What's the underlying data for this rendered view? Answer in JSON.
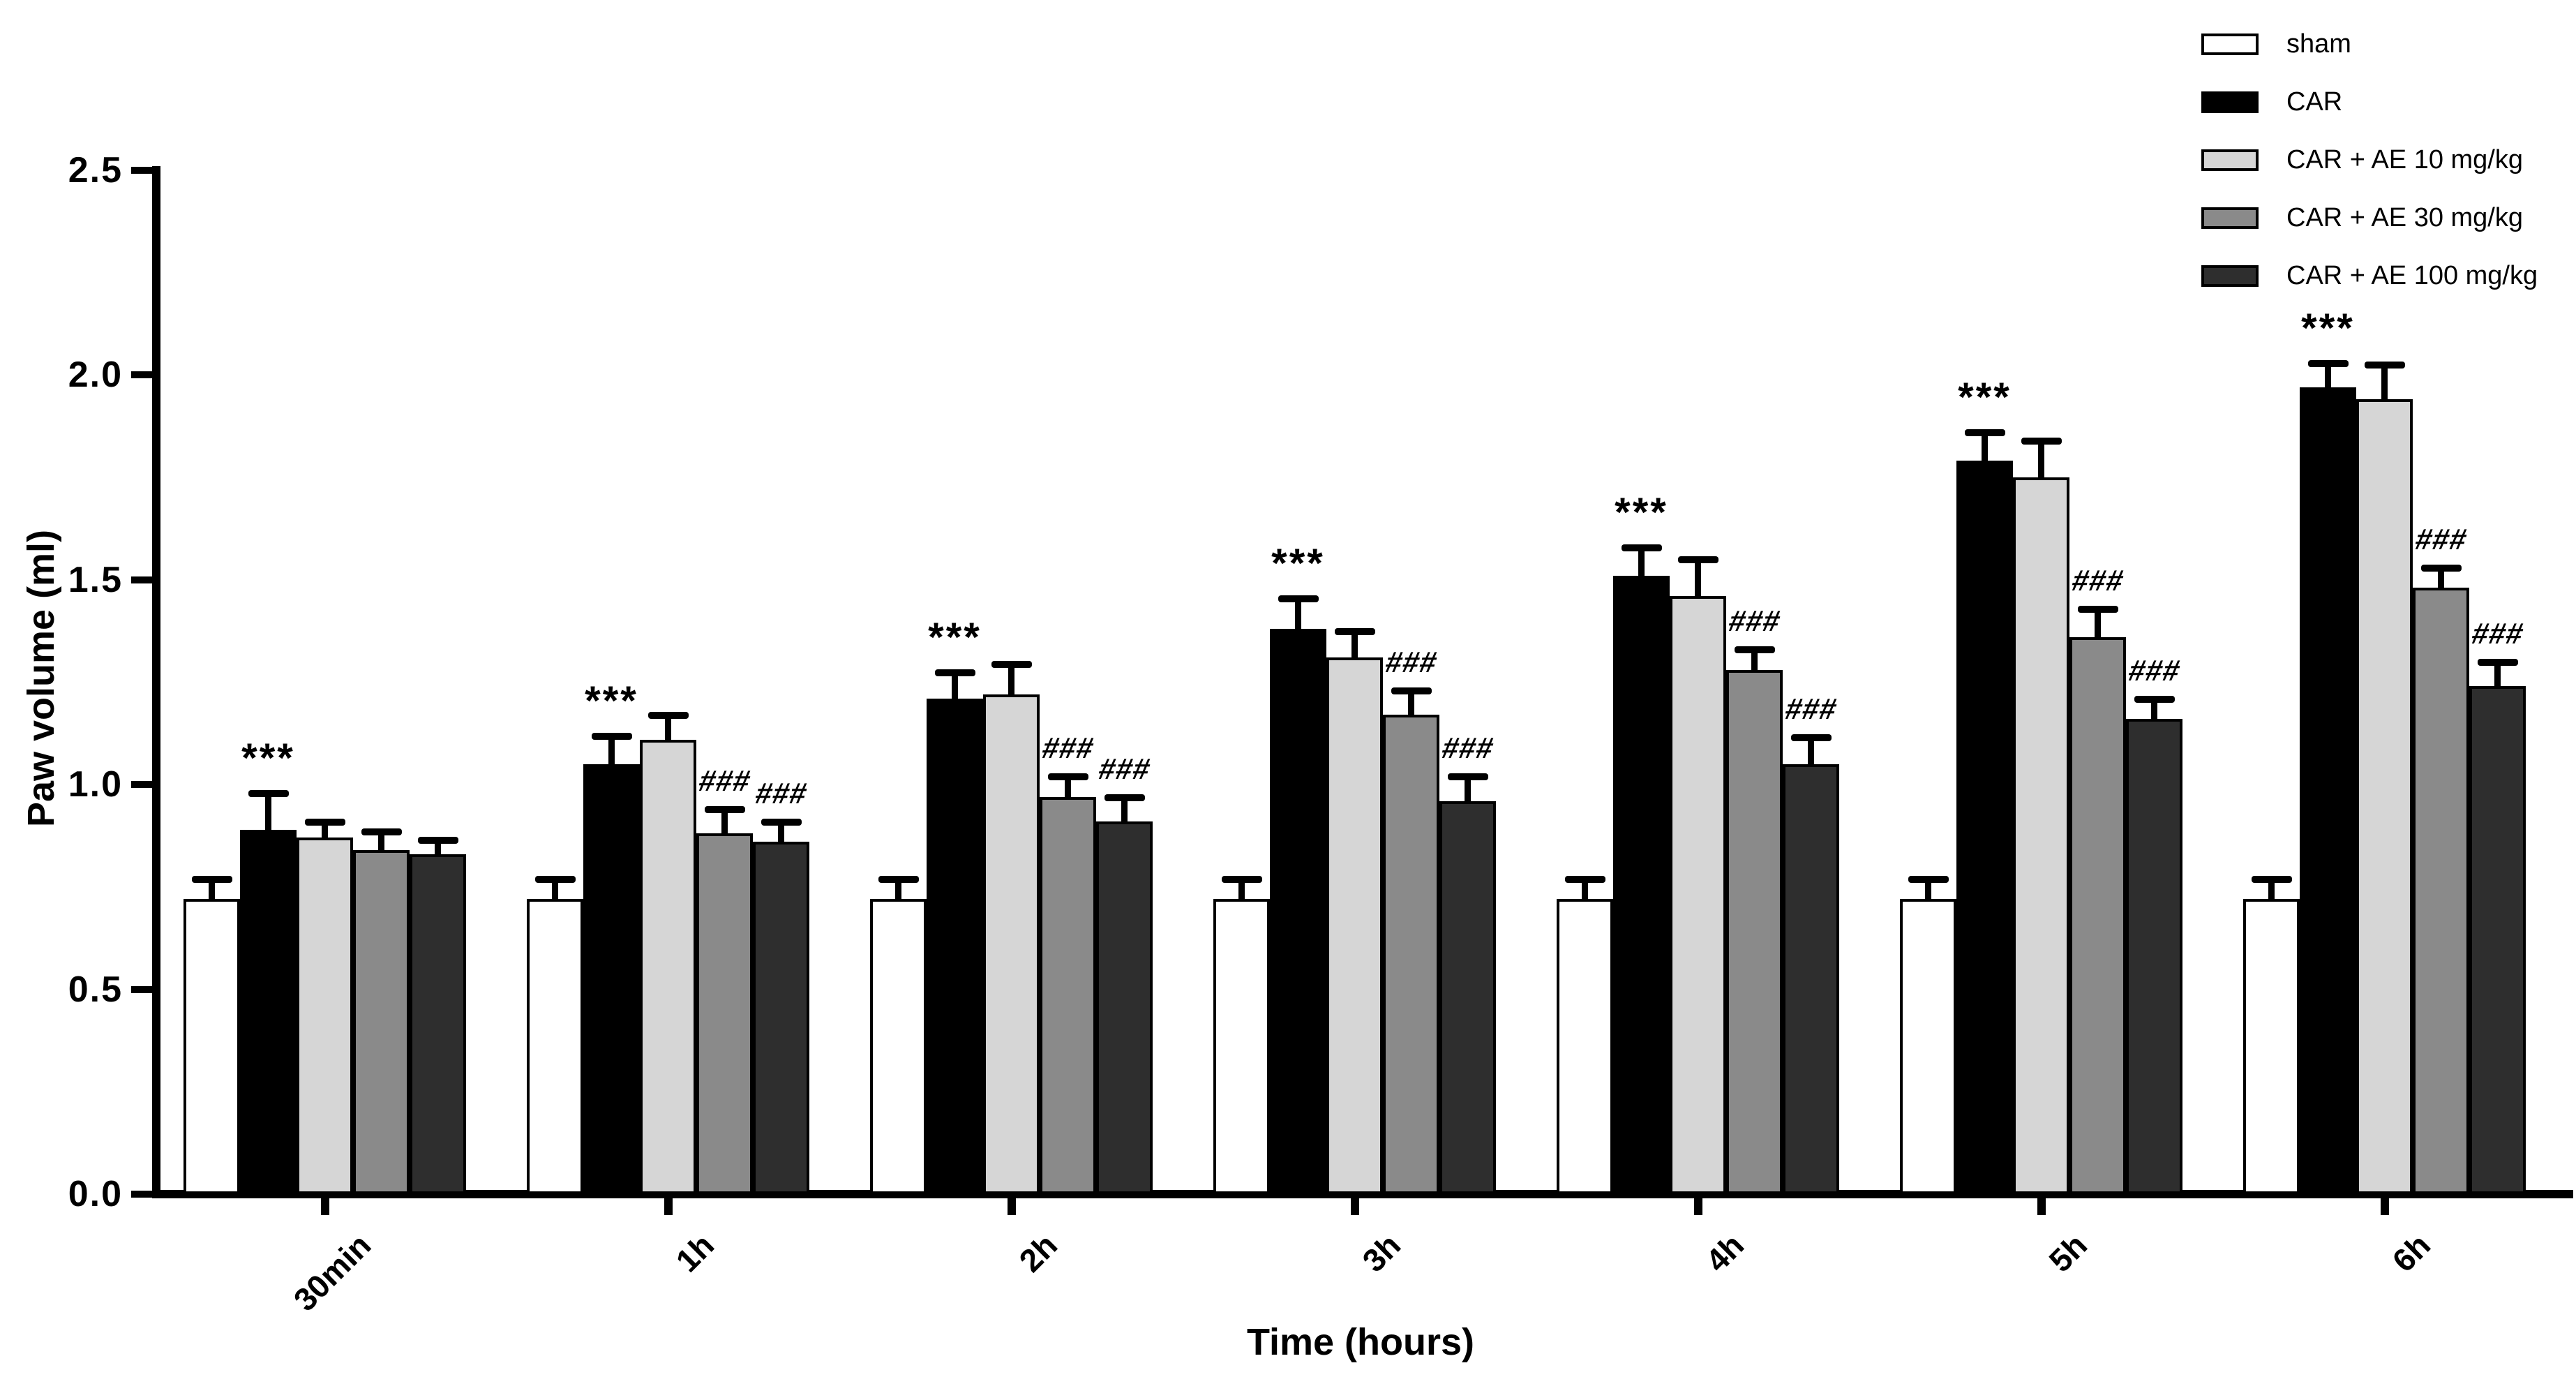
{
  "figure": {
    "y_axis_title": "Paw volume (ml)",
    "x_axis_title": "Time (hours)",
    "y_ticks": [
      "0.0",
      "0.5",
      "1.0",
      "1.5",
      "2.0",
      "2.5"
    ],
    "background_color": "#ffffff",
    "axis_color": "#000000"
  },
  "chart_data": {
    "type": "bar",
    "title": "",
    "xlabel": "Time (hours)",
    "ylabel": "Paw volume (ml)",
    "ylim": [
      0,
      2.5
    ],
    "y_tick_step": 0.5,
    "grid": false,
    "legend_position": "top-right",
    "error_bars": "upper SEM, T-cap",
    "categories": [
      "30min",
      "1h",
      "2h",
      "3h",
      "4h",
      "5h",
      "6h"
    ],
    "series": [
      {
        "name": "sham",
        "color": "#ffffff",
        "values": [
          0.71,
          0.71,
          0.71,
          0.71,
          0.71,
          0.71,
          0.71
        ],
        "errors": [
          0.04,
          0.04,
          0.04,
          0.04,
          0.04,
          0.04,
          0.04
        ],
        "annotations": [
          "",
          "",
          "",
          "",
          "",
          "",
          ""
        ]
      },
      {
        "name": "CAR",
        "color": "#000000",
        "values": [
          0.88,
          1.04,
          1.2,
          1.37,
          1.5,
          1.78,
          1.96
        ],
        "errors": [
          0.08,
          0.06,
          0.055,
          0.065,
          0.06,
          0.06,
          0.05
        ],
        "annotations": [
          "***",
          "***",
          "***",
          "***",
          "***",
          "***",
          "***"
        ]
      },
      {
        "name": "CAR + AE 10 mg/kg",
        "color": "#d6d6d6",
        "values": [
          0.86,
          1.1,
          1.21,
          1.3,
          1.45,
          1.74,
          1.93
        ],
        "errors": [
          0.03,
          0.05,
          0.065,
          0.055,
          0.08,
          0.08,
          0.075
        ],
        "annotations": [
          "",
          "",
          "",
          "",
          "",
          "",
          ""
        ]
      },
      {
        "name": "CAR + AE 30 mg/kg",
        "color": "#8a8a8a",
        "values": [
          0.83,
          0.87,
          0.96,
          1.16,
          1.27,
          1.35,
          1.47
        ],
        "errors": [
          0.035,
          0.05,
          0.04,
          0.05,
          0.04,
          0.06,
          0.04
        ],
        "annotations": [
          "",
          "###",
          "###",
          "###",
          "###",
          "###",
          "###"
        ]
      },
      {
        "name": "CAR + AE 100 mg/kg",
        "color": "#2e2e2e",
        "values": [
          0.82,
          0.85,
          0.9,
          0.95,
          1.04,
          1.15,
          1.23
        ],
        "errors": [
          0.025,
          0.04,
          0.05,
          0.05,
          0.055,
          0.04,
          0.05
        ],
        "annotations": [
          "",
          "###",
          "###",
          "###",
          "###",
          "###",
          "###"
        ]
      }
    ]
  }
}
